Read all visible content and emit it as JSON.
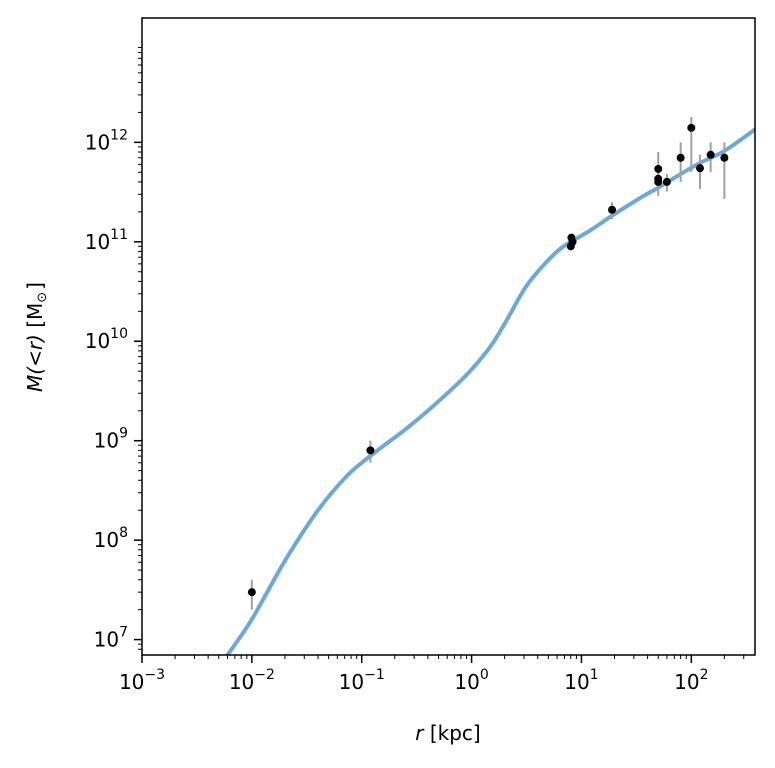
{
  "chart_data": {
    "type": "line",
    "xscale": "log",
    "yscale": "log",
    "xlim": [
      0.001,
      380
    ],
    "ylim": [
      7000000,
      17800000000000
    ],
    "grid": false,
    "legend": "none",
    "xlabel": {
      "var": "r",
      "unit": " [kpc]"
    },
    "ylabel": {
      "main": "M(<r)",
      "unit": " [M",
      "unit_sub": "⊙",
      "unit_close": "]"
    },
    "x_ticks": [
      {
        "value": 0.001,
        "base": "10",
        "exp": "−3"
      },
      {
        "value": 0.01,
        "base": "10",
        "exp": "−2"
      },
      {
        "value": 0.1,
        "base": "10",
        "exp": "−1"
      },
      {
        "value": 1,
        "base": "10",
        "exp": "0"
      },
      {
        "value": 10,
        "base": "10",
        "exp": "1"
      },
      {
        "value": 100,
        "base": "10",
        "exp": "2"
      }
    ],
    "y_ticks": [
      {
        "value": 10000000,
        "base": "10",
        "exp": "7"
      },
      {
        "value": 100000000,
        "base": "10",
        "exp": "8"
      },
      {
        "value": 1000000000,
        "base": "10",
        "exp": "9"
      },
      {
        "value": 10000000000,
        "base": "10",
        "exp": "10"
      },
      {
        "value": 100000000000,
        "base": "10",
        "exp": "11"
      },
      {
        "value": 1000000000000,
        "base": "10",
        "exp": "12"
      }
    ],
    "model_curve": {
      "color": "#6fa8d2",
      "x": [
        0.006,
        0.01,
        0.02,
        0.04,
        0.07,
        0.1,
        0.15,
        0.25,
        0.4,
        0.7,
        1.0,
        1.5,
        2.0,
        3.0,
        4.0,
        6.0,
        8.0,
        12,
        20,
        35,
        50,
        80,
        120,
        200,
        380
      ],
      "y": [
        7000000,
        16000000,
        62000000,
        200000000,
        420000000,
        600000000,
        850000000,
        1300000000,
        2000000000,
        3500000000,
        5200000000,
        9000000000,
        15000000000,
        33000000000,
        50000000000,
        80000000000,
        100000000000,
        130000000000,
        190000000000,
        280000000000,
        350000000000,
        480000000000,
        620000000000,
        820000000000,
        1350000000000
      ]
    },
    "measurements": {
      "point_color": "#000000",
      "errorbar_color": "#a0a0a0",
      "points": [
        {
          "x": 0.01,
          "y": 30000000,
          "ylo": 20000000,
          "yhi": 40000000
        },
        {
          "x": 0.12,
          "y": 800000000,
          "ylo": 600000000,
          "yhi": 1000000000
        },
        {
          "x": 8.0,
          "y": 90000000000,
          "ylo": 85000000000,
          "yhi": 95000000000
        },
        {
          "x": 8.1,
          "y": 110000000000,
          "ylo": 104000000000,
          "yhi": 116000000000
        },
        {
          "x": 8.3,
          "y": 100000000000,
          "ylo": 95000000000,
          "yhi": 105000000000
        },
        {
          "x": 19,
          "y": 210000000000,
          "ylo": 170000000000,
          "yhi": 250000000000
        },
        {
          "x": 50,
          "y": 540000000000,
          "ylo": 360000000000,
          "yhi": 800000000000
        },
        {
          "x": 50,
          "y": 430000000000,
          "ylo": 330000000000,
          "yhi": 530000000000
        },
        {
          "x": 50,
          "y": 400000000000,
          "ylo": 290000000000,
          "yhi": 500000000000
        },
        {
          "x": 60,
          "y": 400000000000,
          "ylo": 320000000000,
          "yhi": 480000000000
        },
        {
          "x": 80,
          "y": 700000000000,
          "ylo": 400000000000,
          "yhi": 1000000000000
        },
        {
          "x": 100,
          "y": 1400000000000,
          "ylo": 500000000000,
          "yhi": 1800000000000
        },
        {
          "x": 120,
          "y": 550000000000,
          "ylo": 340000000000,
          "yhi": 750000000000
        },
        {
          "x": 150,
          "y": 750000000000,
          "ylo": 500000000000,
          "yhi": 1000000000000
        },
        {
          "x": 200,
          "y": 700000000000,
          "ylo": 270000000000,
          "yhi": 1000000000000
        }
      ]
    }
  }
}
